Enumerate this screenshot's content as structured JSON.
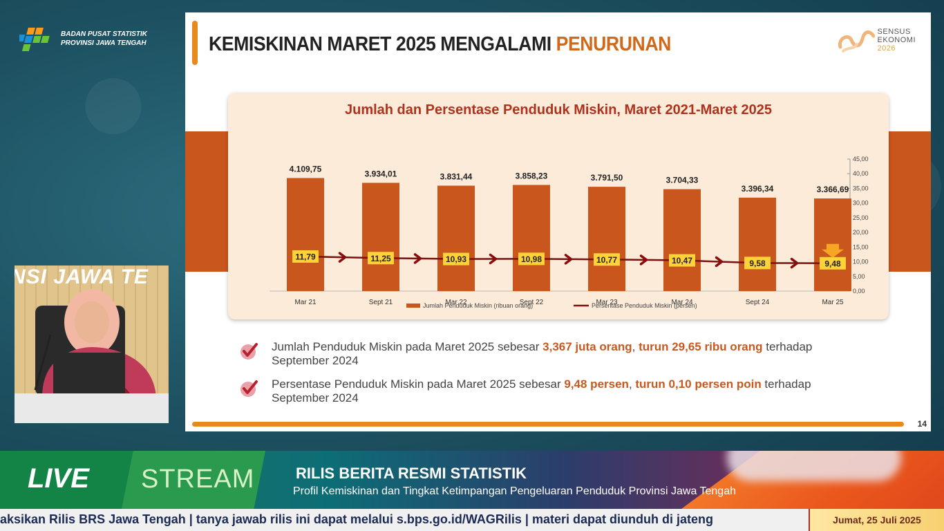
{
  "header": {
    "org_line1": "BADAN PUSAT STATISTIK",
    "org_line2": "PROVINSI JAWA TENGAH"
  },
  "slide": {
    "title_main": "KEMISKINAN MARET 2025 MENGALAMI ",
    "title_accent": "PENURUNAN",
    "logo_line1": "SENSUS",
    "logo_line2": "EKONOMI",
    "logo_year": "2026",
    "page_number": "14",
    "bullets": [
      {
        "t1": "Jumlah Penduduk Miskin pada Maret 2025 sebesar ",
        "b1": "3,367 juta orang",
        "t2": ", ",
        "b2": "turun 29,65 ribu orang",
        "t3": " terhadap September 2024"
      },
      {
        "t1": "Persentase Penduduk Miskin pada Maret 2025 sebesar ",
        "b1": "9,48 persen",
        "t2": ", ",
        "b2": "turun 0,10 persen poin",
        "t3": " terhadap September 2024"
      }
    ]
  },
  "chart_data": {
    "type": "bar",
    "title": "Jumlah dan Persentase Penduduk Miskin, Maret 2021-Maret 2025",
    "categories": [
      "Mar 21",
      "Sept 21",
      "Mar 22",
      "Sept 22",
      "Mar 23",
      "Mar 24",
      "Sept 24",
      "Mar 25"
    ],
    "series": [
      {
        "name": "Jumlah Penduduk Miskin (ribuan orang)",
        "type": "bar",
        "values": [
          4109.75,
          3934.01,
          3831.44,
          3858.23,
          3791.5,
          3704.33,
          3396.34,
          3366.69
        ],
        "labels": [
          "4.109,75",
          "3.934,01",
          "3.831,44",
          "3.858,23",
          "3.791,50",
          "3.704,33",
          "3.396,34",
          "3.366,69"
        ],
        "color": "#c9561c"
      },
      {
        "name": "Persentase Penduduk Miskin (persen)",
        "type": "line",
        "values": [
          11.79,
          11.25,
          10.93,
          10.98,
          10.77,
          10.47,
          9.58,
          9.48
        ],
        "labels": [
          "11,79",
          "11,25",
          "10,93",
          "10,98",
          "10,77",
          "10,47",
          "9,58",
          "9,48"
        ],
        "color": "#7a1010"
      }
    ],
    "y2_ticks": [
      "0,00",
      "5,00",
      "10,00",
      "15,00",
      "20,00",
      "25,00",
      "30,00",
      "35,00",
      "40,00",
      "45,00"
    ],
    "y2lim": [
      0,
      45
    ],
    "label_box_color": "#ffd23a",
    "legend_position": "bottom"
  },
  "presenter": {
    "caption": "NSI JAWA TE"
  },
  "banner": {
    "live": "LIVE",
    "stream": "STREAM",
    "title": "RILIS BERITA RESMI STATISTIK",
    "subtitle": "Profil Kemiskinan dan Tingkat Ketimpangan Pengeluaran Penduduk Provinsi Jawa Tengah"
  },
  "ticker": {
    "text": "aksikan Rilis BRS Jawa Tengah   |  tanya jawab rilis ini dapat melalui s.bps.go.id/WAGRilis  |  materi dapat diunduh di jateng",
    "date": "Jumat, 25 Juli 2025"
  }
}
